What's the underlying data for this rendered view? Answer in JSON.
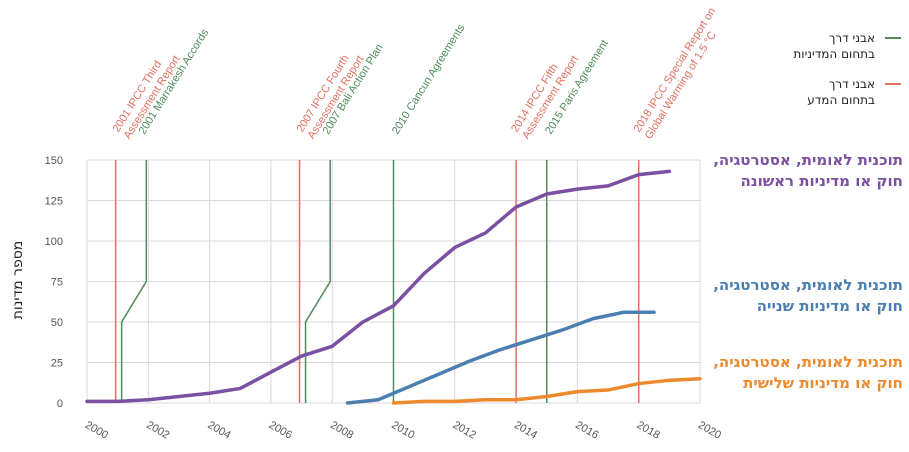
{
  "chart_data": {
    "type": "line",
    "ylabel": "מספר מדינות",
    "xlabel": "",
    "xlim": [
      2000,
      2020
    ],
    "ylim": [
      0,
      150
    ],
    "x_ticks": [
      "2000",
      "2002",
      "2004",
      "2006",
      "2008",
      "2010",
      "2012",
      "2014",
      "2016",
      "2018",
      "2020"
    ],
    "y_ticks": [
      "0",
      "25",
      "50",
      "75",
      "100",
      "125",
      "150"
    ],
    "grid": true,
    "series": [
      {
        "name": "תוכנית לאומית, אסטרטגיה, חוק או מדיניות ראשונה",
        "color": "#7b4fa2",
        "points": [
          [
            2000,
            1
          ],
          [
            2001,
            1
          ],
          [
            2002,
            2
          ],
          [
            2003,
            4
          ],
          [
            2004,
            6
          ],
          [
            2005,
            9
          ],
          [
            2006,
            19
          ],
          [
            2007,
            29
          ],
          [
            2008,
            35
          ],
          [
            2009,
            50
          ],
          [
            2010,
            60
          ],
          [
            2011,
            80
          ],
          [
            2012,
            96
          ],
          [
            2013,
            105
          ],
          [
            2014,
            121
          ],
          [
            2015,
            129
          ],
          [
            2016,
            132
          ],
          [
            2017,
            134
          ],
          [
            2018,
            141
          ],
          [
            2019,
            143
          ]
        ]
      },
      {
        "name": "תוכנית לאומית, אסטרטגיה, חוק או מדיניות שנייה",
        "color": "#4a7fb0",
        "points": [
          [
            2008.5,
            0
          ],
          [
            2009.5,
            2
          ],
          [
            2010.5,
            10
          ],
          [
            2011.5,
            18
          ],
          [
            2012.5,
            26
          ],
          [
            2013.5,
            33
          ],
          [
            2014.5,
            39
          ],
          [
            2015.5,
            45
          ],
          [
            2016.5,
            52
          ],
          [
            2017.5,
            56
          ],
          [
            2018.5,
            56
          ]
        ]
      },
      {
        "name": "תוכנית לאומית, אסטרטגיה, חוק או מדיניות שלישית",
        "color": "#ee8a2e",
        "points": [
          [
            2010,
            0
          ],
          [
            2011,
            1
          ],
          [
            2012,
            1
          ],
          [
            2013,
            2
          ],
          [
            2014,
            2
          ],
          [
            2015,
            4
          ],
          [
            2016,
            7
          ],
          [
            2017,
            8
          ],
          [
            2018,
            12
          ],
          [
            2019,
            14
          ],
          [
            2020,
            15
          ]
        ]
      }
    ],
    "label_lines": [
      {
        "pre": "תוכנית לאומית, אסטרטגיה,",
        "mid": "חוק או מדיניות",
        "hl": "ראשונה"
      },
      {
        "pre": "תוכנית לאומית, אסטרטגיה,",
        "mid": "חוק או מדיניות",
        "hl": "שנייה"
      },
      {
        "pre": "תוכנית לאומית, אסטרטגיה,",
        "mid": "חוק או מדיניות",
        "hl": "שלישית"
      }
    ],
    "milestones": [
      {
        "year": 2001,
        "kind": "science",
        "text": "2001 IPCC Third Assessment Report"
      },
      {
        "year": 2001,
        "kind": "policy",
        "text": "2001 Marrakesh Accords"
      },
      {
        "year": 2007,
        "kind": "science",
        "text": "2007 IPCC Fourth Assessment Report"
      },
      {
        "year": 2007,
        "kind": "policy",
        "text": "2007 Bali Action Plan"
      },
      {
        "year": 2010,
        "kind": "policy",
        "text": "2010 Cancun Agreements"
      },
      {
        "year": 2014,
        "kind": "science",
        "text": "2014 IPCC Fifth Assessment Report"
      },
      {
        "year": 2015,
        "kind": "policy",
        "text": "2015 Paris Agreement"
      },
      {
        "year": 2018,
        "kind": "science",
        "text": "2018 IPCC Special Report on Global Warming of 1.5 °C"
      }
    ],
    "legend": {
      "placement": "top-right",
      "policy_label_1": "אבני דרך",
      "policy_label_2": "בתחום המדיניות",
      "science_label_1": "אבני דרך",
      "science_label_2": "בתחום המדע",
      "policy_color": "#4e8a5b",
      "science_color": "#e07060"
    }
  }
}
